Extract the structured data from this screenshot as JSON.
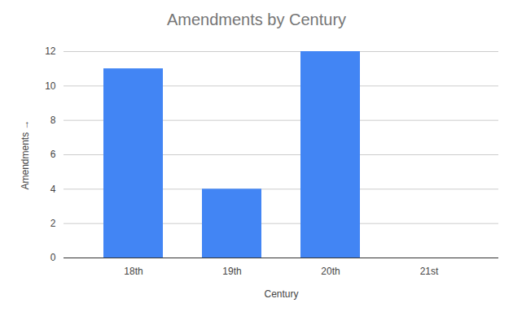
{
  "chart_data": {
    "type": "bar",
    "title": "Amendments by Century",
    "x_label": "Century",
    "y_label": "Amendments",
    "categories": [
      "18th",
      "19th",
      "20th",
      "21st"
    ],
    "values": [
      11,
      4,
      12,
      0
    ],
    "color": "#4285f4",
    "ylim": [
      0,
      12
    ],
    "yticks": [
      0,
      2,
      4,
      6,
      8,
      10,
      12
    ],
    "grid": true
  }
}
